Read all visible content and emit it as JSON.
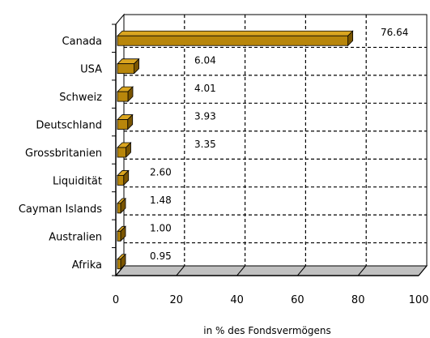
{
  "chart_data": {
    "type": "bar",
    "orientation": "horizontal",
    "three_d": true,
    "categories": [
      "Canada",
      "USA",
      "Schweiz",
      "Deutschland",
      "Grossbritanien",
      "Liquidität",
      "Cayman Islands",
      "Australien",
      "Afrika"
    ],
    "values": [
      76.64,
      6.04,
      4.01,
      3.93,
      3.35,
      2.6,
      1.48,
      1.0,
      0.95
    ],
    "data_labels": [
      "76.64",
      "6.04",
      "4.01",
      "3.93",
      "3.35",
      "2.60",
      "1.48",
      "1.00",
      "0.95"
    ],
    "x_ticks": [
      "0",
      "20",
      "40",
      "60",
      "80",
      "100"
    ],
    "xlim": [
      0,
      100
    ],
    "xlabel": "in % des Fondsvermögens",
    "ylabel": "",
    "title": "",
    "grid": true,
    "legend": "none",
    "colors": {
      "bar_front": "#B8860B",
      "bar_top": "#DAA520",
      "bar_side": "#7A5500",
      "floor": "#C0C0C0",
      "grid": "#000000"
    }
  }
}
